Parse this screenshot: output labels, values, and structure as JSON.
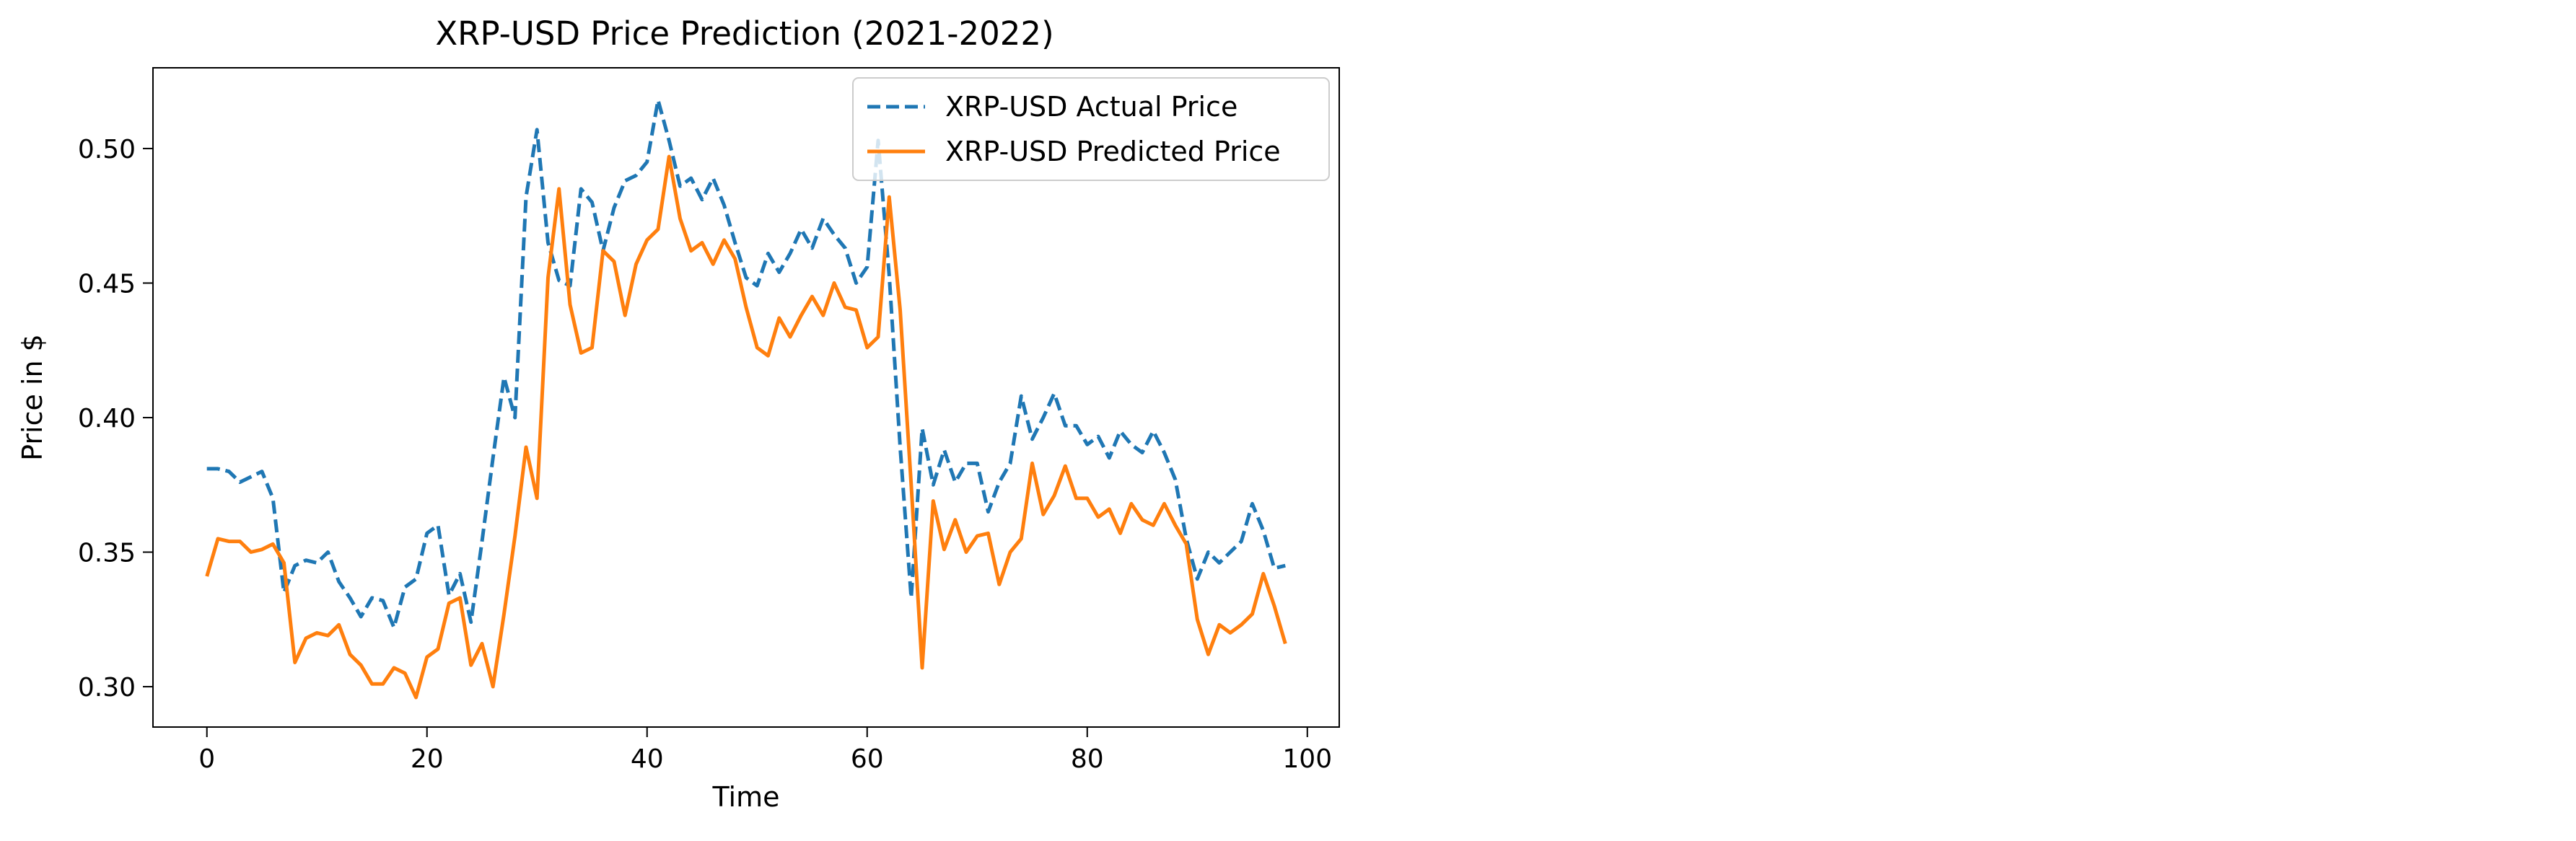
{
  "chart_data": {
    "type": "line",
    "title": "XRP-USD Price Prediction (2021-2022)",
    "xlabel": "Time",
    "ylabel": "Price in $",
    "xlim": [
      -4.9,
      102.9
    ],
    "ylim": [
      0.285,
      0.53
    ],
    "xticks": [
      0,
      20,
      40,
      60,
      80,
      100
    ],
    "yticks": [
      0.3,
      0.35,
      0.4,
      0.45,
      0.5
    ],
    "ytick_labels": [
      "0.30",
      "0.35",
      "0.40",
      "0.45",
      "0.50"
    ],
    "grid": false,
    "legend_position": "upper-right",
    "series": [
      {
        "name": "XRP-USD Actual Price",
        "color": "#1f77b4",
        "style": "dashed",
        "values": [
          0.381,
          0.381,
          0.38,
          0.376,
          0.378,
          0.38,
          0.37,
          0.335,
          0.345,
          0.347,
          0.346,
          0.35,
          0.339,
          0.333,
          0.326,
          0.333,
          0.332,
          0.322,
          0.337,
          0.34,
          0.357,
          0.36,
          0.334,
          0.342,
          0.324,
          0.354,
          0.385,
          0.415,
          0.4,
          0.482,
          0.507,
          0.465,
          0.451,
          0.449,
          0.485,
          0.48,
          0.462,
          0.478,
          0.488,
          0.49,
          0.495,
          0.518,
          0.503,
          0.486,
          0.489,
          0.481,
          0.489,
          0.479,
          0.465,
          0.452,
          0.449,
          0.461,
          0.454,
          0.461,
          0.47,
          0.463,
          0.474,
          0.468,
          0.463,
          0.45,
          0.456,
          0.503,
          0.453,
          0.389,
          0.333,
          0.396,
          0.375,
          0.388,
          0.376,
          0.383,
          0.383,
          0.365,
          0.376,
          0.383,
          0.408,
          0.392,
          0.4,
          0.409,
          0.397,
          0.397,
          0.39,
          0.393,
          0.385,
          0.395,
          0.39,
          0.387,
          0.395,
          0.387,
          0.377,
          0.355,
          0.34,
          0.35,
          0.346,
          0.35,
          0.354,
          0.368,
          0.358,
          0.344,
          0.345
        ]
      },
      {
        "name": "XRP-USD Predicted Price",
        "color": "#ff7f0e",
        "style": "solid",
        "values": [
          0.341,
          0.355,
          0.354,
          0.354,
          0.35,
          0.351,
          0.353,
          0.346,
          0.309,
          0.318,
          0.32,
          0.319,
          0.323,
          0.312,
          0.308,
          0.301,
          0.301,
          0.307,
          0.305,
          0.296,
          0.311,
          0.314,
          0.331,
          0.333,
          0.308,
          0.316,
          0.3,
          0.327,
          0.356,
          0.389,
          0.37,
          0.452,
          0.485,
          0.442,
          0.424,
          0.426,
          0.462,
          0.458,
          0.438,
          0.457,
          0.466,
          0.47,
          0.497,
          0.474,
          0.462,
          0.465,
          0.457,
          0.466,
          0.459,
          0.441,
          0.426,
          0.423,
          0.437,
          0.43,
          0.438,
          0.445,
          0.438,
          0.45,
          0.441,
          0.44,
          0.426,
          0.43,
          0.482,
          0.44,
          0.375,
          0.307,
          0.369,
          0.351,
          0.362,
          0.35,
          0.356,
          0.357,
          0.338,
          0.35,
          0.355,
          0.383,
          0.364,
          0.371,
          0.382,
          0.37,
          0.37,
          0.363,
          0.366,
          0.357,
          0.368,
          0.362,
          0.36,
          0.368,
          0.36,
          0.353,
          0.325,
          0.312,
          0.323,
          0.32,
          0.323,
          0.327,
          0.342,
          0.33,
          0.316
        ]
      }
    ]
  }
}
